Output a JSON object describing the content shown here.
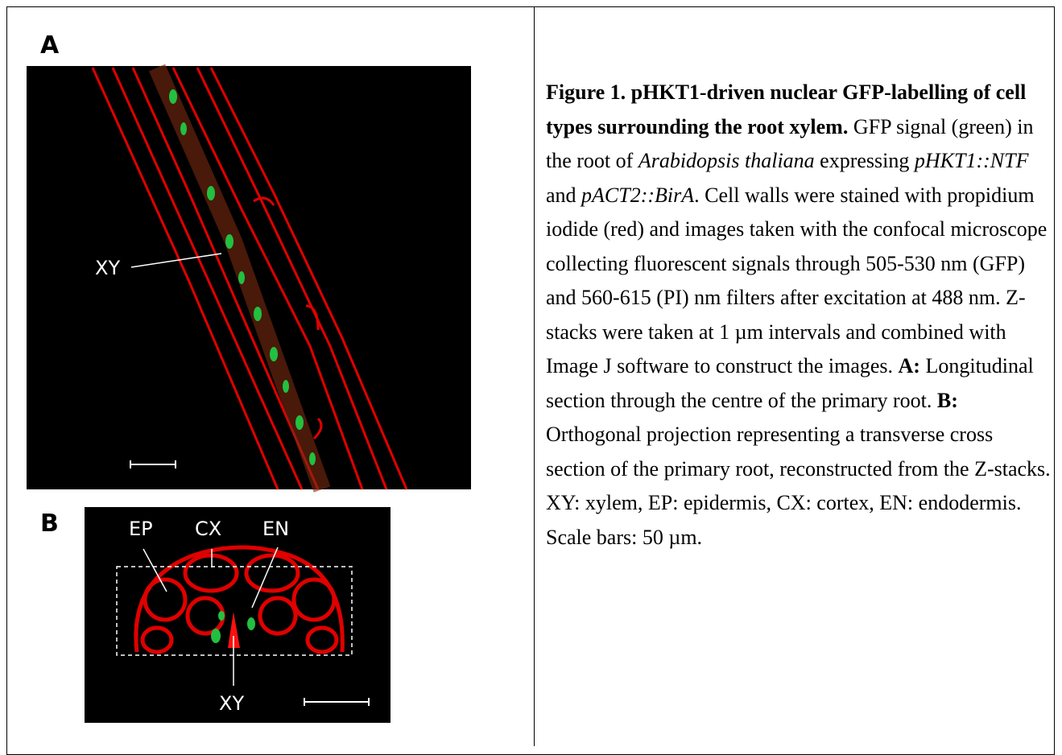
{
  "panels": {
    "a": {
      "label": "A",
      "annotation": "XY"
    },
    "b": {
      "label": "B",
      "annotations": [
        "EP",
        "CX",
        "EN",
        "XY"
      ]
    }
  },
  "caption": {
    "parts": [
      "Figure 1. pHKT1-driven nuclear GFP-labelling of cell types surrounding the root xylem.",
      " GFP signal (green) in the root of ",
      "Arabidopsis thaliana",
      " expressing ",
      "pHKT1::NTF",
      " and ",
      "pACT2::BirA",
      ". Cell walls were stained with propidium iodide (red) and images taken with the confocal microscope collecting fluorescent signals through 505-530 nm (GFP) and 560-615 (PI) nm filters after excitation at 488 nm.  Z-stacks were taken at 1 µm intervals and combined with Image J software to construct the images. ",
      "A:",
      " Longitudinal section through the centre of the primary root. ",
      "B:",
      " Orthogonal projection representing a transverse cross section of the primary root, reconstructed from the Z-stacks. XY: xylem, EP: epidermis, CX: cortex, EN: endodermis. Scale bars: 50 µm."
    ]
  }
}
